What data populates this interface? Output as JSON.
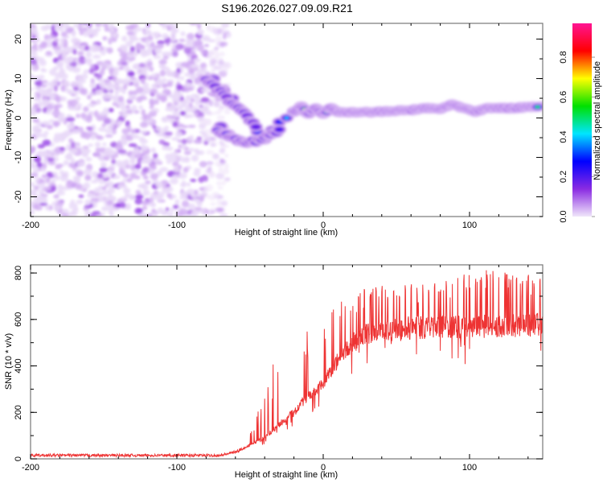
{
  "title": "S196.2026.027.09.09.R21",
  "chart_data": [
    {
      "type": "heatmap",
      "title": "S196.2026.027.09.09.R21",
      "xlabel": "Height of straight line (km)",
      "ylabel": "Frequency (Hz)",
      "xlim": [
        -200,
        150
      ],
      "ylim": [
        -25,
        24
      ],
      "xticks": [
        -200,
        -100,
        0,
        100
      ],
      "yticks": [
        -20,
        -10,
        0,
        10,
        20
      ],
      "colorbar": {
        "label": "Normalized spectral amplitude",
        "range": [
          0,
          0.97
        ],
        "ticks": [
          0.0,
          0.2,
          0.4,
          0.6,
          0.8
        ],
        "colormap": [
          "#f0e6fa",
          "#8a2be2",
          "#0000ff",
          "#00e5ff",
          "#00e000",
          "#ffff00",
          "#ff0000",
          "#ff1493"
        ]
      },
      "noise_region": {
        "x_from": -200,
        "x_to": -70,
        "amplitude_range": [
          0.0,
          0.12
        ]
      },
      "ridge": [
        {
          "x": -75,
          "f": 10,
          "a": 0.1
        },
        {
          "x": -68,
          "f": 7,
          "a": 0.18
        },
        {
          "x": -62,
          "f": 5,
          "a": 0.15
        },
        {
          "x": -56,
          "f": 2,
          "a": 0.12
        },
        {
          "x": -70,
          "f": -2,
          "a": 0.15
        },
        {
          "x": -65,
          "f": -4,
          "a": 0.2
        },
        {
          "x": -58,
          "f": -5.5,
          "a": 0.35
        },
        {
          "x": -50,
          "f": -6,
          "a": 0.25
        },
        {
          "x": -45,
          "f": -3.5,
          "a": 0.3
        },
        {
          "x": -40,
          "f": -5.5,
          "a": 0.35
        },
        {
          "x": -35,
          "f": -3,
          "a": 0.25
        },
        {
          "x": -30,
          "f": -1,
          "a": 0.3
        },
        {
          "x": -25,
          "f": 0,
          "a": 0.4
        },
        {
          "x": -20,
          "f": 1.5,
          "a": 0.55
        },
        {
          "x": -15,
          "f": 3,
          "a": 0.6
        },
        {
          "x": -10,
          "f": 1,
          "a": 0.8
        },
        {
          "x": -5,
          "f": 2.5,
          "a": 0.6
        },
        {
          "x": 0,
          "f": 1,
          "a": 0.85
        },
        {
          "x": 5,
          "f": 2.5,
          "a": 0.55
        },
        {
          "x": 10,
          "f": 1.5,
          "a": 0.7
        },
        {
          "x": 20,
          "f": 1.5,
          "a": 0.85
        },
        {
          "x": 35,
          "f": 1.5,
          "a": 0.85
        },
        {
          "x": 50,
          "f": 1.8,
          "a": 0.7
        },
        {
          "x": 60,
          "f": 2,
          "a": 0.6
        },
        {
          "x": 70,
          "f": 2.5,
          "a": 0.88
        },
        {
          "x": 80,
          "f": 2.2,
          "a": 0.6
        },
        {
          "x": 88,
          "f": 3.5,
          "a": 0.9
        },
        {
          "x": 96,
          "f": 2.5,
          "a": 0.85
        },
        {
          "x": 104,
          "f": 1.5,
          "a": 0.9
        },
        {
          "x": 112,
          "f": 2.5,
          "a": 0.8
        },
        {
          "x": 120,
          "f": 2.5,
          "a": 0.9
        },
        {
          "x": 130,
          "f": 2.5,
          "a": 0.9
        },
        {
          "x": 140,
          "f": 2.8,
          "a": 0.6
        },
        {
          "x": 148,
          "f": 3,
          "a": 0.55
        }
      ]
    },
    {
      "type": "line",
      "xlabel": "Height of straight line (km)",
      "ylabel": "SNR (10 * v/v)",
      "xlim": [
        -200,
        150
      ],
      "ylim": [
        0,
        835
      ],
      "xticks": [
        -200,
        -100,
        0,
        100
      ],
      "yticks": [
        0,
        200,
        400,
        600,
        800
      ],
      "color": "#ee3333",
      "series": [
        {
          "name": "SNR",
          "envelope": {
            "x": [
              -200,
              -70,
              -60,
              -50,
              -40,
              -30,
              -20,
              -10,
              0,
              10,
              20,
              30,
              50,
              80,
              110,
              150
            ],
            "baseline": [
              15,
              15,
              30,
              60,
              90,
              150,
              200,
              270,
              320,
              420,
              500,
              540,
              560,
              570,
              570,
              580
            ],
            "peak": [
              30,
              30,
              70,
              140,
              260,
              520,
              520,
              600,
              560,
              680,
              710,
              740,
              750,
              760,
              830,
              790
            ]
          }
        }
      ]
    }
  ]
}
